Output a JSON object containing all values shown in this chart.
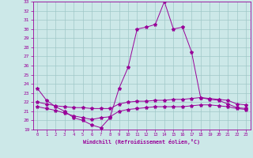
{
  "xlabel": "Windchill (Refroidissement éolien,°C)",
  "bg_color": "#cce8e8",
  "grid_color": "#a0c8c8",
  "line_color": "#990099",
  "x_ticks": [
    0,
    1,
    2,
    3,
    4,
    5,
    6,
    7,
    8,
    9,
    10,
    11,
    12,
    13,
    14,
    15,
    16,
    17,
    18,
    19,
    20,
    21,
    22,
    23
  ],
  "ylim": [
    19,
    33
  ],
  "y_ticks": [
    19,
    20,
    21,
    22,
    23,
    24,
    25,
    26,
    27,
    28,
    29,
    30,
    31,
    32,
    33
  ],
  "xlim": [
    -0.5,
    23.5
  ],
  "series1_x": [
    0,
    1,
    2,
    3,
    4,
    5,
    6,
    7,
    8,
    9,
    10,
    11,
    12,
    13,
    14,
    15,
    16,
    17,
    18,
    19,
    20,
    21,
    22,
    23
  ],
  "series1_y": [
    23.5,
    22.2,
    21.5,
    21.0,
    20.3,
    20.0,
    19.5,
    19.2,
    20.3,
    23.5,
    25.8,
    30.0,
    30.2,
    30.5,
    33.0,
    30.0,
    30.2,
    27.5,
    22.5,
    22.3,
    22.2,
    21.8,
    21.4,
    21.3
  ],
  "series2_x": [
    0,
    1,
    2,
    3,
    4,
    5,
    6,
    7,
    8,
    9,
    10,
    11,
    12,
    13,
    14,
    15,
    16,
    17,
    18,
    19,
    20,
    21,
    22,
    23
  ],
  "series2_y": [
    21.5,
    21.3,
    21.1,
    20.8,
    20.5,
    20.3,
    20.1,
    20.3,
    20.4,
    21.0,
    21.2,
    21.3,
    21.4,
    21.5,
    21.5,
    21.5,
    21.5,
    21.6,
    21.7,
    21.7,
    21.6,
    21.5,
    21.3,
    21.2
  ],
  "series3_x": [
    0,
    1,
    2,
    3,
    4,
    5,
    6,
    7,
    8,
    9,
    10,
    11,
    12,
    13,
    14,
    15,
    16,
    17,
    18,
    19,
    20,
    21,
    22,
    23
  ],
  "series3_y": [
    22.0,
    21.8,
    21.6,
    21.5,
    21.4,
    21.4,
    21.3,
    21.3,
    21.3,
    21.8,
    22.0,
    22.1,
    22.1,
    22.2,
    22.2,
    22.3,
    22.3,
    22.4,
    22.5,
    22.4,
    22.3,
    22.2,
    21.8,
    21.7
  ]
}
